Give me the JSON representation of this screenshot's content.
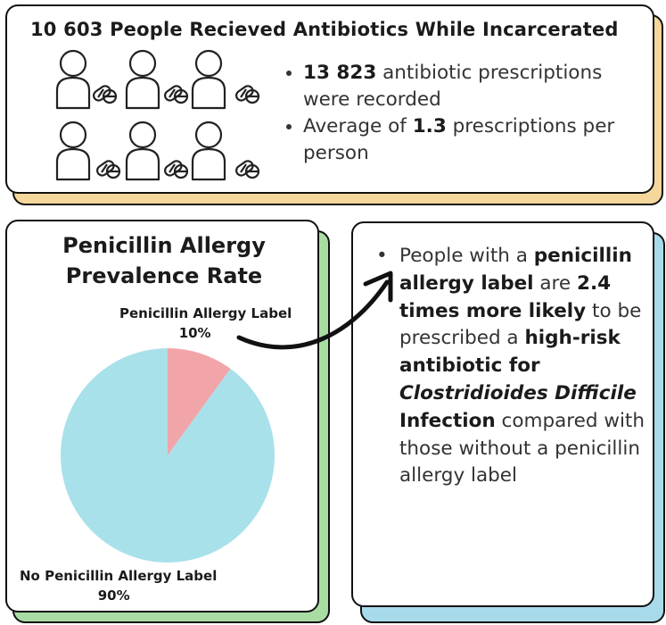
{
  "top_card": {
    "title": "10 603 People Recieved Antibiotics While Incarcerated",
    "bullets": [
      {
        "bold": "13 823",
        "text": " antibiotic prescriptions were recorded"
      },
      {
        "pre": "Average of ",
        "bold": "1.3",
        "text": " prescriptions per person"
      }
    ],
    "icons": [
      "person-icon",
      "pill-icon"
    ]
  },
  "pie_card": {
    "title_line1": "Penicillin Allergy",
    "title_line2": "Prevalence Rate",
    "slice_labels": {
      "allergy_name": "Penicillin Allergy Label",
      "allergy_pct": "10%",
      "no_allergy_name": "No Penicillin Allergy Label",
      "no_allergy_pct": "90%"
    }
  },
  "right_card": {
    "segments": [
      {
        "t": "People with a ",
        "s": ""
      },
      {
        "t": "penicillin allergy label",
        "s": "b"
      },
      {
        "t": " are ",
        "s": ""
      },
      {
        "t": "2.4 times more likely",
        "s": "b"
      },
      {
        "t": " to be prescribed a ",
        "s": ""
      },
      {
        "t": "high-risk antibiotic for ",
        "s": "b"
      },
      {
        "t": "Clostridioides Difficile",
        "s": "bi"
      },
      {
        "t": " Infection",
        "s": "b"
      },
      {
        "t": " compared with those without a penicillin allergy label",
        "s": ""
      }
    ]
  },
  "colors": {
    "top_shadow": "#f6d79b",
    "left_shadow": "#a9dca2",
    "right_shadow": "#a8dbea",
    "slice_allergy": "#f2a5a9",
    "slice_no_allergy": "#a8e1ea"
  },
  "chart_data": {
    "type": "pie",
    "title": "Penicillin Allergy Prevalence Rate",
    "labels": [
      "Penicillin Allergy Label",
      "No Penicillin Allergy Label"
    ],
    "values": [
      10,
      90
    ],
    "colors": [
      "#f2a5a9",
      "#a8e1ea"
    ]
  }
}
